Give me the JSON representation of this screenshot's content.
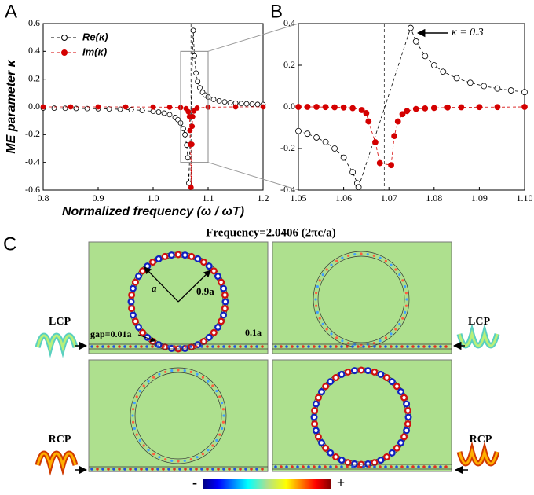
{
  "chart_data": [
    {
      "type": "scatter",
      "xlabel": "Normalized frequency (ω / ωT)",
      "ylabel": "ME parameter κ",
      "xlim": [
        0.8,
        1.2
      ],
      "xticks": [
        0.8,
        0.9,
        {
          "value": 1,
          "label": "1.0"
        },
        1.1,
        1.2
      ],
      "ylim": [
        -0.6,
        0.6
      ],
      "yticks": [
        -0.6,
        -0.4,
        -0.2,
        {
          "value": 0,
          "label": "0.0"
        },
        0.2,
        0.4,
        0.6
      ],
      "vline": 1.069,
      "legend": "upper left",
      "series": [
        {
          "name": "Re(κ)",
          "color": "#000000",
          "marker": "open",
          "x": [
            0.8,
            0.82,
            0.84,
            0.86,
            0.88,
            0.9,
            0.92,
            0.94,
            0.96,
            0.98,
            1.0,
            1.01,
            1.02,
            1.03,
            1.04,
            1.045,
            1.05,
            1.055,
            1.058,
            1.061,
            1.063,
            1.065,
            1.073,
            1.075,
            1.078,
            1.081,
            1.085,
            1.09,
            1.095,
            1.1,
            1.11,
            1.12,
            1.13,
            1.14,
            1.15,
            1.16,
            1.17,
            1.18,
            1.19,
            1.2
          ],
          "values": [
            -0.008,
            -0.009,
            -0.01,
            -0.011,
            -0.012,
            -0.013,
            -0.015,
            -0.017,
            -0.02,
            -0.025,
            -0.032,
            -0.037,
            -0.045,
            -0.056,
            -0.076,
            -0.092,
            -0.116,
            -0.157,
            -0.2,
            -0.275,
            -0.367,
            -0.55,
            0.55,
            0.367,
            0.244,
            0.183,
            0.138,
            0.105,
            0.085,
            0.071,
            0.054,
            0.043,
            0.036,
            0.031,
            0.027,
            0.024,
            0.022,
            0.02,
            0.018,
            0.017
          ]
        },
        {
          "name": "Im(κ)",
          "color": "#d40000",
          "marker": "filled",
          "x": [
            0.8,
            0.85,
            0.9,
            0.95,
            1.0,
            1.03,
            1.05,
            1.06,
            1.064,
            1.066,
            1.067,
            1.068,
            1.069,
            1.0705,
            1.071,
            1.072,
            1.074,
            1.08,
            1.1,
            1.15,
            1.2
          ],
          "values": [
            0,
            0,
            0,
            0,
            -0.001,
            -0.002,
            -0.005,
            -0.012,
            -0.035,
            -0.07,
            -0.17,
            -0.27,
            -0.58,
            -0.27,
            -0.14,
            -0.07,
            -0.03,
            -0.008,
            -0.002,
            0,
            0
          ]
        }
      ]
    },
    {
      "type": "scatter",
      "annotation": "κ = 0.3",
      "xlim": [
        1.05,
        1.1
      ],
      "xticks": [
        1.05,
        1.06,
        1.07,
        1.08,
        1.09,
        {
          "value": 1.1,
          "label": "1.10"
        }
      ],
      "ylim": [
        -0.4,
        0.4
      ],
      "yticks": [
        -0.4,
        -0.2,
        {
          "value": 0,
          "label": "0.0"
        },
        0.2,
        0.4
      ],
      "vline": 1.069,
      "series": [
        {
          "name": "Re(κ)",
          "color": "#000000",
          "marker": "open",
          "x": [
            1.05,
            1.052,
            1.054,
            1.056,
            1.058,
            1.06,
            1.062,
            1.063,
            1.0633,
            1.0748,
            1.076,
            1.078,
            1.08,
            1.082,
            1.085,
            1.088,
            1.091,
            1.094,
            1.097,
            1.1
          ],
          "values": [
            -0.116,
            -0.129,
            -0.147,
            -0.169,
            -0.2,
            -0.244,
            -0.314,
            -0.367,
            -0.386,
            0.379,
            0.314,
            0.244,
            0.2,
            0.169,
            0.138,
            0.116,
            0.1,
            0.088,
            0.079,
            0.071
          ]
        },
        {
          "name": "Im(κ)",
          "color": "#d40000",
          "marker": "filled",
          "x": [
            1.05,
            1.052,
            1.054,
            1.056,
            1.058,
            1.06,
            1.062,
            1.064,
            1.065,
            1.0655,
            1.067,
            1.068,
            1.0705,
            1.0712,
            1.072,
            1.073,
            1.074,
            1.076,
            1.078,
            1.08,
            1.083,
            1.086,
            1.09,
            1.094,
            1.1
          ],
          "values": [
            0,
            0,
            0,
            -0.001,
            -0.002,
            -0.003,
            -0.006,
            -0.015,
            -0.03,
            -0.07,
            -0.17,
            -0.27,
            -0.28,
            -0.14,
            -0.07,
            -0.035,
            -0.02,
            -0.01,
            -0.007,
            -0.005,
            -0.003,
            -0.002,
            -0.001,
            -0.001,
            0
          ]
        }
      ]
    }
  ],
  "panel_labels": [
    "A",
    "B",
    "C"
  ],
  "field_panel": {
    "title": "Frequency=2.0406 (2πc/a)",
    "lcp": "LCP",
    "rcp": "RCP",
    "radius": "a",
    "inner_radius": "0.9a",
    "gap": "gap=0.01a",
    "width": "0.1a",
    "colorbar_min": "-",
    "colorbar_max": "+"
  }
}
